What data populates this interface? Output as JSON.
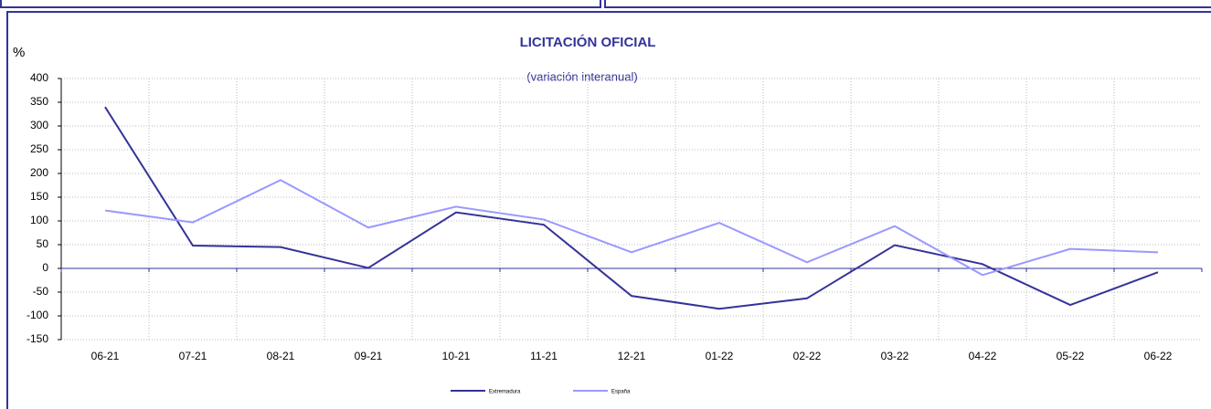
{
  "chart_data": {
    "type": "line",
    "title": "LICITACIÓN OFICIAL",
    "subtitle": "(variación interanual)",
    "y_label": "%",
    "categories": [
      "06-21",
      "07-21",
      "08-21",
      "09-21",
      "10-21",
      "11-21",
      "12-21",
      "01-22",
      "02-22",
      "03-22",
      "04-22",
      "05-22",
      "06-22"
    ],
    "series": [
      {
        "name": "Extremadura",
        "color": "#333399",
        "values": [
          340,
          48,
          45,
          1,
          118,
          92,
          -58,
          -85,
          -63,
          49,
          9,
          -77,
          -8
        ]
      },
      {
        "name": "España",
        "color": "#9999ff",
        "values": [
          122,
          97,
          186,
          86,
          130,
          103,
          34,
          96,
          13,
          89,
          -14,
          41,
          34
        ]
      }
    ],
    "ylim": [
      -150,
      400
    ],
    "yticks": [
      400,
      350,
      300,
      250,
      200,
      150,
      100,
      50,
      0,
      -50,
      -100,
      -150
    ],
    "grid": true,
    "legend": "bottom"
  }
}
